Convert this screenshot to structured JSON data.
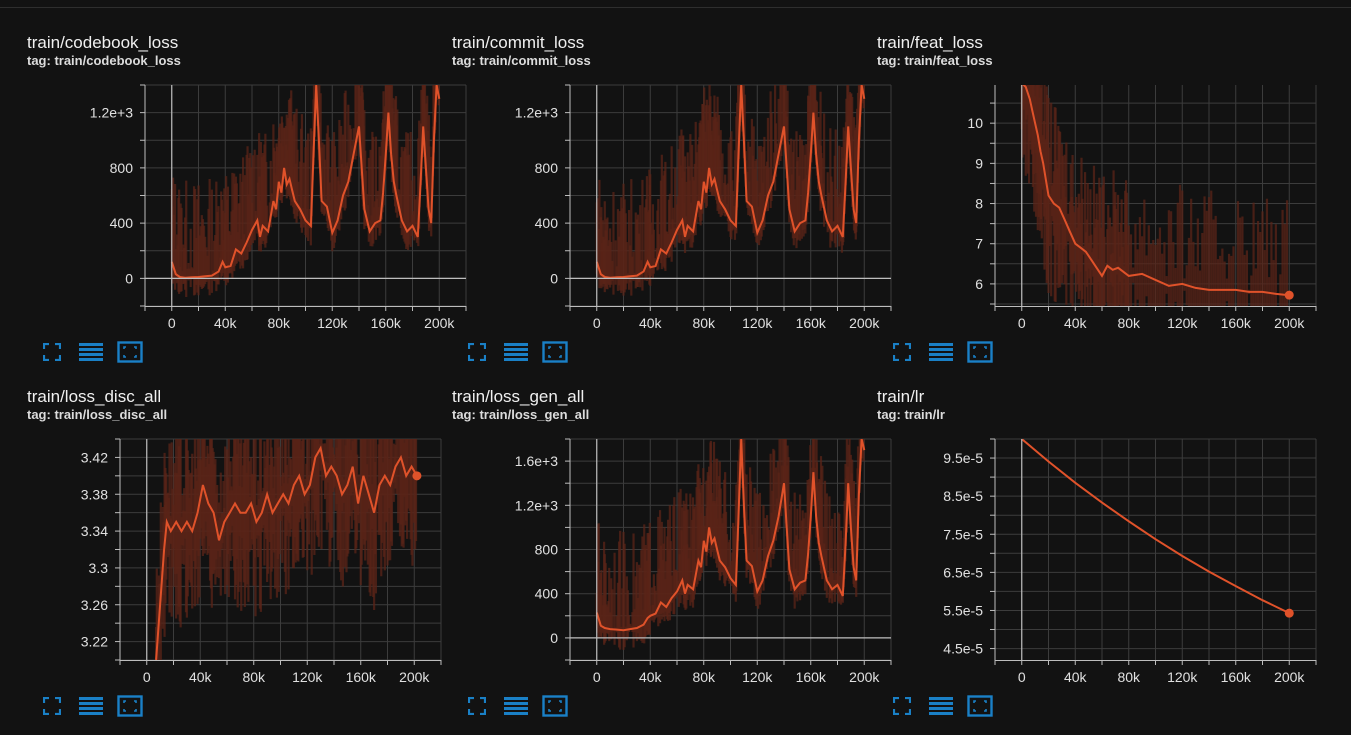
{
  "colors": {
    "background": "#121212",
    "plot_background": "#121212",
    "grid": "#3c3c3c",
    "axis": "#bdbdbd",
    "series": "#e0522a",
    "series_raw": "#5a2418",
    "icon": "#1a80c6"
  },
  "icons": [
    "fullscreen-icon",
    "toggle-list-icon",
    "fit-domain-icon"
  ],
  "chart_data": [
    {
      "type": "line",
      "title": "train/codebook_loss",
      "tag": "tag: train/codebook_loss",
      "xlim": [
        -20000,
        220000
      ],
      "ylim": [
        -200,
        1400
      ],
      "x_ticks": [
        0,
        40000,
        80000,
        120000,
        160000,
        200000
      ],
      "x_tick_labels": [
        "0",
        "40k",
        "80k",
        "120k",
        "160k",
        "200k"
      ],
      "y_ticks": [
        0,
        400,
        800,
        1200
      ],
      "y_tick_labels": [
        "0",
        "400",
        "800",
        "1.2e+3"
      ],
      "grid": true,
      "series": [
        {
          "x": [
            0,
            3000,
            6000,
            10000,
            15000,
            20000,
            25000,
            30000,
            35000,
            38000,
            40000,
            44000,
            48000,
            52000,
            56000,
            60000,
            64000,
            66000,
            68000,
            72000,
            76000,
            78000,
            80000,
            82000,
            84000,
            86000,
            88000,
            90000,
            92000,
            96000,
            100000,
            104000,
            106000,
            108000,
            110000,
            112000,
            116000,
            120000,
            124000,
            128000,
            132000,
            136000,
            140000,
            142000,
            144000,
            148000,
            152000,
            156000,
            158000,
            160000,
            162000,
            164000,
            166000,
            168000,
            172000,
            176000,
            180000,
            184000,
            186000,
            188000,
            190000,
            192000,
            194000,
            196000,
            198000,
            200000
          ],
          "values": [
            120,
            30,
            10,
            5,
            8,
            10,
            15,
            20,
            50,
            120,
            80,
            90,
            210,
            180,
            260,
            350,
            420,
            300,
            380,
            340,
            560,
            500,
            700,
            620,
            800,
            680,
            720,
            640,
            560,
            500,
            420,
            380,
            900,
            1400,
            1000,
            560,
            520,
            330,
            420,
            600,
            700,
            900,
            1100,
            800,
            500,
            340,
            400,
            420,
            620,
            900,
            1200,
            900,
            700,
            600,
            420,
            340,
            380,
            300,
            680,
            1100,
            800,
            500,
            400,
            1000,
            1400,
            1300
          ]
        }
      ]
    },
    {
      "type": "line",
      "title": "train/commit_loss",
      "tag": "tag: train/commit_loss",
      "xlim": [
        -20000,
        220000
      ],
      "ylim": [
        -200,
        1400
      ],
      "x_ticks": [
        0,
        40000,
        80000,
        120000,
        160000,
        200000
      ],
      "x_tick_labels": [
        "0",
        "40k",
        "80k",
        "120k",
        "160k",
        "200k"
      ],
      "y_ticks": [
        0,
        400,
        800,
        1200
      ],
      "y_tick_labels": [
        "0",
        "400",
        "800",
        "1.2e+3"
      ],
      "grid": true,
      "series": [
        {
          "x": [
            0,
            3000,
            6000,
            10000,
            15000,
            20000,
            25000,
            30000,
            35000,
            38000,
            40000,
            44000,
            48000,
            52000,
            56000,
            60000,
            64000,
            66000,
            68000,
            72000,
            76000,
            78000,
            80000,
            82000,
            84000,
            86000,
            88000,
            90000,
            92000,
            96000,
            100000,
            104000,
            106000,
            108000,
            110000,
            112000,
            116000,
            120000,
            124000,
            128000,
            132000,
            136000,
            140000,
            142000,
            144000,
            148000,
            152000,
            156000,
            158000,
            160000,
            162000,
            164000,
            166000,
            168000,
            172000,
            176000,
            180000,
            184000,
            186000,
            188000,
            190000,
            192000,
            194000,
            196000,
            198000,
            200000
          ],
          "values": [
            120,
            30,
            10,
            5,
            8,
            10,
            15,
            20,
            50,
            120,
            80,
            90,
            210,
            180,
            260,
            350,
            420,
            300,
            380,
            340,
            560,
            500,
            700,
            620,
            800,
            680,
            720,
            640,
            560,
            500,
            420,
            380,
            900,
            1400,
            1000,
            560,
            520,
            330,
            420,
            600,
            700,
            900,
            1100,
            800,
            500,
            340,
            400,
            420,
            620,
            900,
            1200,
            900,
            700,
            600,
            420,
            340,
            380,
            300,
            680,
            1100,
            800,
            500,
            400,
            1000,
            1400,
            1300
          ]
        }
      ]
    },
    {
      "type": "line",
      "title": "train/feat_loss",
      "tag": "tag: train/feat_loss",
      "xlim": [
        -20000,
        220000
      ],
      "ylim": [
        5.45,
        10.95
      ],
      "x_ticks": [
        0,
        40000,
        80000,
        120000,
        160000,
        200000
      ],
      "x_tick_labels": [
        "0",
        "40k",
        "80k",
        "120k",
        "160k",
        "200k"
      ],
      "y_ticks": [
        6,
        7,
        8,
        9,
        10
      ],
      "y_tick_labels": [
        "6",
        "7",
        "8",
        "9",
        "10"
      ],
      "grid": true,
      "series": [
        {
          "x": [
            0,
            3000,
            6000,
            8000,
            10000,
            12000,
            14000,
            16000,
            18000,
            20000,
            24000,
            28000,
            32000,
            36000,
            40000,
            44000,
            48000,
            52000,
            56000,
            60000,
            64000,
            68000,
            72000,
            76000,
            80000,
            90000,
            100000,
            110000,
            120000,
            130000,
            140000,
            150000,
            160000,
            170000,
            180000,
            190000,
            200000
          ],
          "values": [
            11.0,
            10.9,
            10.6,
            10.3,
            10.0,
            9.7,
            9.3,
            9.0,
            8.6,
            8.2,
            8.0,
            7.9,
            7.6,
            7.3,
            7.0,
            6.9,
            6.8,
            6.6,
            6.4,
            6.2,
            6.45,
            6.35,
            6.4,
            6.3,
            6.2,
            6.25,
            6.1,
            5.95,
            6.0,
            5.9,
            5.85,
            5.85,
            5.85,
            5.8,
            5.8,
            5.75,
            5.72
          ]
        }
      ]
    },
    {
      "type": "line",
      "title": "train/loss_disc_all",
      "tag": "tag: train/loss_disc_all",
      "xlim": [
        -20000,
        220000
      ],
      "ylim": [
        3.2,
        3.44
      ],
      "x_ticks": [
        0,
        40000,
        80000,
        120000,
        160000,
        200000
      ],
      "x_tick_labels": [
        "0",
        "40k",
        "80k",
        "120k",
        "160k",
        "200k"
      ],
      "y_ticks": [
        3.22,
        3.26,
        3.3,
        3.34,
        3.38,
        3.42
      ],
      "y_tick_labels": [
        "3.22",
        "3.26",
        "3.3",
        "3.34",
        "3.38",
        "3.42"
      ],
      "grid": true,
      "series": [
        {
          "x": [
            7000,
            10000,
            13000,
            15000,
            18000,
            22000,
            26000,
            30000,
            34000,
            38000,
            42000,
            46000,
            50000,
            54000,
            58000,
            62000,
            66000,
            70000,
            74000,
            78000,
            82000,
            86000,
            90000,
            94000,
            98000,
            102000,
            106000,
            110000,
            114000,
            118000,
            122000,
            126000,
            130000,
            134000,
            138000,
            142000,
            146000,
            150000,
            154000,
            158000,
            162000,
            166000,
            170000,
            174000,
            178000,
            182000,
            186000,
            190000,
            194000,
            198000,
            202000
          ],
          "values": [
            3.2,
            3.26,
            3.32,
            3.35,
            3.34,
            3.35,
            3.34,
            3.35,
            3.34,
            3.36,
            3.39,
            3.37,
            3.36,
            3.33,
            3.35,
            3.36,
            3.37,
            3.36,
            3.36,
            3.37,
            3.35,
            3.36,
            3.38,
            3.36,
            3.37,
            3.38,
            3.37,
            3.39,
            3.4,
            3.38,
            3.39,
            3.42,
            3.43,
            3.4,
            3.41,
            3.4,
            3.38,
            3.39,
            3.41,
            3.37,
            3.4,
            3.38,
            3.36,
            3.39,
            3.4,
            3.39,
            3.41,
            3.42,
            3.4,
            3.41,
            3.4
          ]
        }
      ]
    },
    {
      "type": "line",
      "title": "train/loss_gen_all",
      "tag": "tag: train/loss_gen_all",
      "xlim": [
        -20000,
        220000
      ],
      "ylim": [
        -200,
        1800
      ],
      "x_ticks": [
        0,
        40000,
        80000,
        120000,
        160000,
        200000
      ],
      "x_tick_labels": [
        "0",
        "40k",
        "80k",
        "120k",
        "160k",
        "200k"
      ],
      "y_ticks": [
        0,
        400,
        800,
        1200,
        1600
      ],
      "y_tick_labels": [
        "0",
        "400",
        "800",
        "1.2e+3",
        "1.6e+3"
      ],
      "grid": true,
      "series": [
        {
          "x": [
            0,
            3000,
            6000,
            10000,
            15000,
            20000,
            25000,
            30000,
            35000,
            38000,
            40000,
            44000,
            48000,
            52000,
            56000,
            60000,
            64000,
            66000,
            68000,
            72000,
            76000,
            78000,
            80000,
            82000,
            84000,
            86000,
            88000,
            90000,
            92000,
            96000,
            100000,
            104000,
            106000,
            108000,
            110000,
            112000,
            116000,
            120000,
            124000,
            128000,
            132000,
            136000,
            140000,
            142000,
            144000,
            148000,
            152000,
            156000,
            158000,
            160000,
            162000,
            164000,
            166000,
            168000,
            172000,
            176000,
            180000,
            184000,
            186000,
            188000,
            190000,
            192000,
            194000,
            196000,
            198000,
            200000
          ],
          "values": [
            230,
            110,
            90,
            80,
            75,
            70,
            80,
            90,
            120,
            180,
            200,
            220,
            320,
            280,
            360,
            420,
            520,
            400,
            480,
            440,
            700,
            640,
            880,
            780,
            1000,
            860,
            900,
            800,
            700,
            640,
            540,
            480,
            1100,
            1800,
            1200,
            700,
            650,
            420,
            520,
            740,
            880,
            1100,
            1400,
            1000,
            620,
            440,
            500,
            520,
            760,
            1100,
            1500,
            1100,
            860,
            740,
            520,
            440,
            480,
            380,
            840,
            1400,
            1000,
            640,
            520,
            1300,
            1800,
            1700
          ]
        }
      ]
    },
    {
      "type": "line",
      "title": "train/lr",
      "tag": "tag: train/lr",
      "xlim": [
        -20000,
        220000
      ],
      "ylim": [
        4.2e-05,
        0.0001
      ],
      "x_ticks": [
        0,
        40000,
        80000,
        120000,
        160000,
        200000
      ],
      "x_tick_labels": [
        "0",
        "40k",
        "80k",
        "120k",
        "160k",
        "200k"
      ],
      "y_ticks": [
        4.5e-05,
        5.5e-05,
        6.5e-05,
        7.5e-05,
        8.5e-05,
        9.5e-05
      ],
      "y_tick_labels": [
        "4.5e-5",
        "5.5e-5",
        "6.5e-5",
        "7.5e-5",
        "8.5e-5",
        "9.5e-5"
      ],
      "grid": true,
      "series": [
        {
          "x": [
            0,
            20000,
            40000,
            60000,
            80000,
            100000,
            120000,
            140000,
            160000,
            180000,
            200000
          ],
          "values": [
            0.0001,
            9.41e-05,
            8.85e-05,
            8.33e-05,
            7.84e-05,
            7.37e-05,
            6.93e-05,
            6.52e-05,
            6.14e-05,
            5.77e-05,
            5.43e-05
          ]
        }
      ]
    }
  ]
}
